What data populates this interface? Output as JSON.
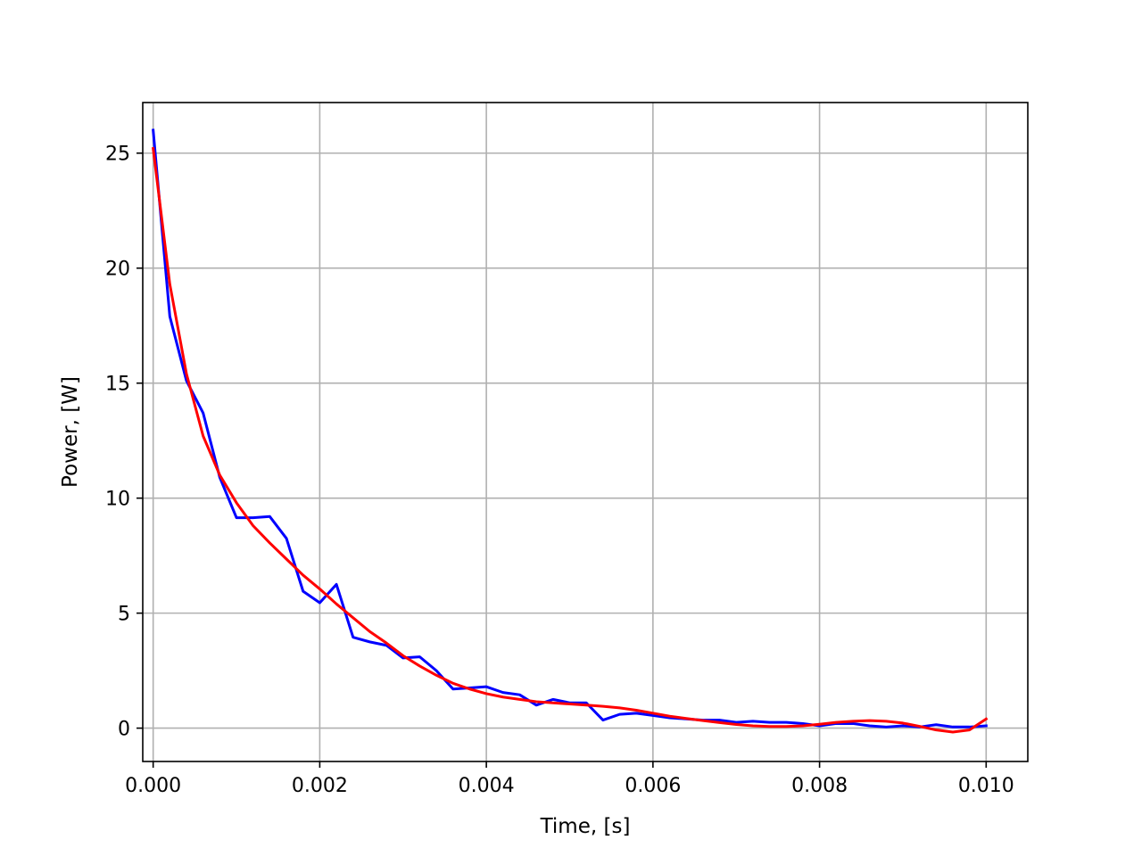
{
  "chart_data": {
    "type": "line",
    "title": "",
    "xlabel": "Time, [s]",
    "ylabel": "Power, [W]",
    "xlim": [
      -0.000125,
      0.0105
    ],
    "ylim": [
      -1.45,
      27.2
    ],
    "x_ticks": [
      0.0,
      0.002,
      0.004,
      0.006,
      0.008,
      0.01
    ],
    "x_tick_labels": [
      "0.000",
      "0.002",
      "0.004",
      "0.006",
      "0.008",
      "0.010"
    ],
    "y_ticks": [
      0,
      5,
      10,
      15,
      20,
      25
    ],
    "y_tick_labels": [
      "0",
      "5",
      "10",
      "15",
      "20",
      "25"
    ],
    "grid": true,
    "legend": "none",
    "series": [
      {
        "color": "#0000ff",
        "x": [
          0.0,
          0.0002,
          0.0004,
          0.0006,
          0.0008,
          0.001,
          0.0012,
          0.0014,
          0.0016,
          0.0018,
          0.002,
          0.0022,
          0.0024,
          0.0026,
          0.0028,
          0.003,
          0.0032,
          0.0034,
          0.0036,
          0.0038,
          0.004,
          0.0042,
          0.0044,
          0.0046,
          0.0048,
          0.005,
          0.0052,
          0.0054,
          0.0056,
          0.0058,
          0.006,
          0.0062,
          0.0064,
          0.0066,
          0.0068,
          0.007,
          0.0072,
          0.0074,
          0.0076,
          0.0078,
          0.008,
          0.0082,
          0.0084,
          0.0086,
          0.0088,
          0.009,
          0.0092,
          0.0094,
          0.0096,
          0.0098,
          0.01
        ],
        "y": [
          26.0,
          17.9,
          15.1,
          13.7,
          10.9,
          9.15,
          9.15,
          9.2,
          8.25,
          5.95,
          5.45,
          6.25,
          3.95,
          3.75,
          3.6,
          3.05,
          3.1,
          2.5,
          1.7,
          1.75,
          1.8,
          1.55,
          1.45,
          1.0,
          1.25,
          1.1,
          1.1,
          0.35,
          0.6,
          0.65,
          0.55,
          0.45,
          0.4,
          0.35,
          0.35,
          0.25,
          0.3,
          0.25,
          0.25,
          0.2,
          0.1,
          0.2,
          0.2,
          0.1,
          0.05,
          0.1,
          0.05,
          0.15,
          0.05,
          0.05,
          0.1
        ]
      },
      {
        "color": "#ff0000",
        "x": [
          0.0,
          0.0002,
          0.0004,
          0.0006,
          0.0008,
          0.001,
          0.0012,
          0.0014,
          0.0016,
          0.0018,
          0.002,
          0.0022,
          0.0024,
          0.0026,
          0.0028,
          0.003,
          0.0032,
          0.0034,
          0.0036,
          0.0038,
          0.004,
          0.0042,
          0.0044,
          0.0046,
          0.0048,
          0.005,
          0.0052,
          0.0054,
          0.0056,
          0.0058,
          0.006,
          0.0062,
          0.0064,
          0.0066,
          0.0068,
          0.007,
          0.0072,
          0.0074,
          0.0076,
          0.0078,
          0.008,
          0.0082,
          0.0084,
          0.0086,
          0.0088,
          0.009,
          0.0092,
          0.0094,
          0.0096,
          0.0098,
          0.01
        ],
        "y": [
          25.2,
          19.3,
          15.4,
          12.7,
          11.0,
          9.8,
          8.8,
          8.05,
          7.35,
          6.65,
          6.05,
          5.4,
          4.8,
          4.2,
          3.7,
          3.15,
          2.7,
          2.3,
          1.95,
          1.7,
          1.5,
          1.35,
          1.25,
          1.15,
          1.1,
          1.05,
          1.0,
          0.95,
          0.88,
          0.78,
          0.65,
          0.52,
          0.42,
          0.33,
          0.24,
          0.16,
          0.1,
          0.07,
          0.07,
          0.1,
          0.17,
          0.25,
          0.3,
          0.33,
          0.3,
          0.22,
          0.08,
          -0.08,
          -0.17,
          -0.08,
          0.4
        ]
      }
    ]
  }
}
